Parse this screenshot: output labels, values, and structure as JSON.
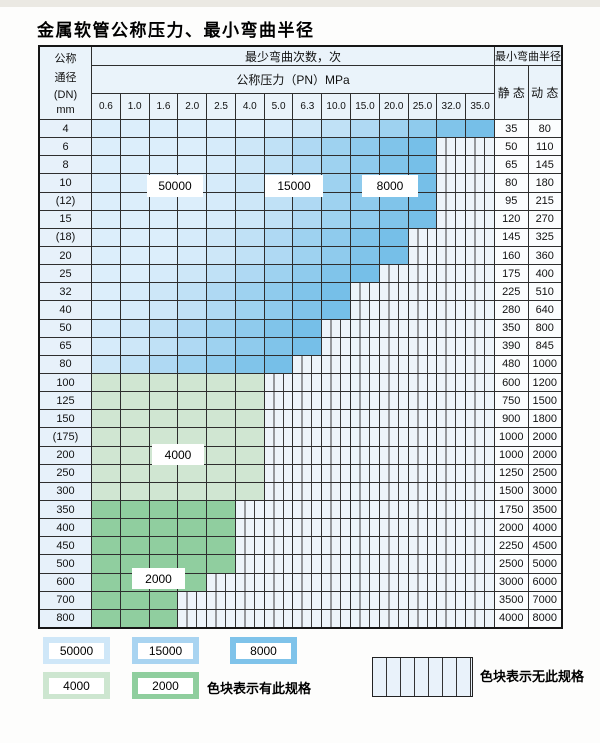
{
  "title": "金属软管公称压力、最小弯曲半径",
  "header": {
    "dn_lines": [
      "公称",
      "通径",
      "(DN)",
      "mm"
    ],
    "bend_times": "最少弯曲次数，次",
    "pn": "公称压力（PN）MPa",
    "radius": "最小弯曲半径",
    "static_label": "静 态",
    "dynamic_label": "动 态",
    "pressures": [
      "0.6",
      "1.0",
      "1.6",
      "2.0",
      "2.5",
      "4.0",
      "5.0",
      "6.3",
      "10.0",
      "15.0",
      "20.0",
      "25.0",
      "32.0",
      "35.0"
    ]
  },
  "rows": [
    {
      "dn": "4",
      "static": "35",
      "dynamic": "80",
      "colored_cols": 14,
      "group": "blue"
    },
    {
      "dn": "6",
      "static": "50",
      "dynamic": "110",
      "colored_cols": 12,
      "group": "blue"
    },
    {
      "dn": "8",
      "static": "65",
      "dynamic": "145",
      "colored_cols": 12,
      "group": "blue"
    },
    {
      "dn": "10",
      "static": "80",
      "dynamic": "180",
      "colored_cols": 12,
      "group": "blue"
    },
    {
      "dn": "(12)",
      "static": "95",
      "dynamic": "215",
      "colored_cols": 12,
      "group": "blue"
    },
    {
      "dn": "15",
      "static": "120",
      "dynamic": "270",
      "colored_cols": 12,
      "group": "blue"
    },
    {
      "dn": "(18)",
      "static": "145",
      "dynamic": "325",
      "colored_cols": 11,
      "group": "blue"
    },
    {
      "dn": "20",
      "static": "160",
      "dynamic": "360",
      "colored_cols": 11,
      "group": "blue"
    },
    {
      "dn": "25",
      "static": "175",
      "dynamic": "400",
      "colored_cols": 10,
      "group": "blue"
    },
    {
      "dn": "32",
      "static": "225",
      "dynamic": "510",
      "colored_cols": 9,
      "group": "blue"
    },
    {
      "dn": "40",
      "static": "280",
      "dynamic": "640",
      "colored_cols": 9,
      "group": "blue"
    },
    {
      "dn": "50",
      "static": "350",
      "dynamic": "800",
      "colored_cols": 8,
      "group": "blue"
    },
    {
      "dn": "65",
      "static": "390",
      "dynamic": "845",
      "colored_cols": 8,
      "group": "blue"
    },
    {
      "dn": "80",
      "static": "480",
      "dynamic": "1000",
      "colored_cols": 7,
      "group": "blue"
    },
    {
      "dn": "100",
      "static": "600",
      "dynamic": "1200",
      "colored_cols": 6,
      "group": "green-light"
    },
    {
      "dn": "125",
      "static": "750",
      "dynamic": "1500",
      "colored_cols": 6,
      "group": "green-light"
    },
    {
      "dn": "150",
      "static": "900",
      "dynamic": "1800",
      "colored_cols": 6,
      "group": "green-light"
    },
    {
      "dn": "(175)",
      "static": "1000",
      "dynamic": "2000",
      "colored_cols": 6,
      "group": "green-light"
    },
    {
      "dn": "200",
      "static": "1000",
      "dynamic": "2000",
      "colored_cols": 6,
      "group": "green-light"
    },
    {
      "dn": "250",
      "static": "1250",
      "dynamic": "2500",
      "colored_cols": 6,
      "group": "green-light"
    },
    {
      "dn": "300",
      "static": "1500",
      "dynamic": "3000",
      "colored_cols": 6,
      "group": "green-light"
    },
    {
      "dn": "350",
      "static": "1750",
      "dynamic": "3500",
      "colored_cols": 5,
      "group": "green-dark"
    },
    {
      "dn": "400",
      "static": "2000",
      "dynamic": "4000",
      "colored_cols": 5,
      "group": "green-dark"
    },
    {
      "dn": "450",
      "static": "2250",
      "dynamic": "4500",
      "colored_cols": 5,
      "group": "green-dark"
    },
    {
      "dn": "500",
      "static": "2500",
      "dynamic": "5000",
      "colored_cols": 5,
      "group": "green-dark"
    },
    {
      "dn": "600",
      "static": "3000",
      "dynamic": "6000",
      "colored_cols": 4,
      "group": "green-dark"
    },
    {
      "dn": "700",
      "static": "3500",
      "dynamic": "7000",
      "colored_cols": 3,
      "group": "green-dark"
    },
    {
      "dn": "800",
      "static": "4000",
      "dynamic": "8000",
      "colored_cols": 3,
      "group": "green-dark"
    }
  ],
  "overlays": [
    {
      "text": "50000"
    },
    {
      "text": "15000"
    },
    {
      "text": "8000"
    },
    {
      "text": "4000"
    },
    {
      "text": "2000"
    }
  ],
  "legend": {
    "items": [
      {
        "label": "50000",
        "color": "#cfe7f8"
      },
      {
        "label": "15000",
        "color": "#a9d4f1"
      },
      {
        "label": "8000",
        "color": "#7fc3ea"
      },
      {
        "label": "4000",
        "color": "#cde6d0"
      },
      {
        "label": "2000",
        "color": "#8fce9e"
      }
    ],
    "available_text": "色块表示有此规格",
    "unavailable_text": "色块表示无此规格"
  },
  "colors": {
    "blue_shades": [
      "#76bfe8",
      "#80c4ea",
      "#8fcbed",
      "#9ed2f0",
      "#afd9f3",
      "#c0e1f6",
      "#cde7f8",
      "#d6ebfa",
      "#dceefb"
    ],
    "green_light": "#d0e6d2",
    "green_dark": "#90ce9f",
    "nospec_bg": "#edf4fa",
    "grid_line": "#2e2e2e",
    "header_bg": "#eaf3fa"
  }
}
